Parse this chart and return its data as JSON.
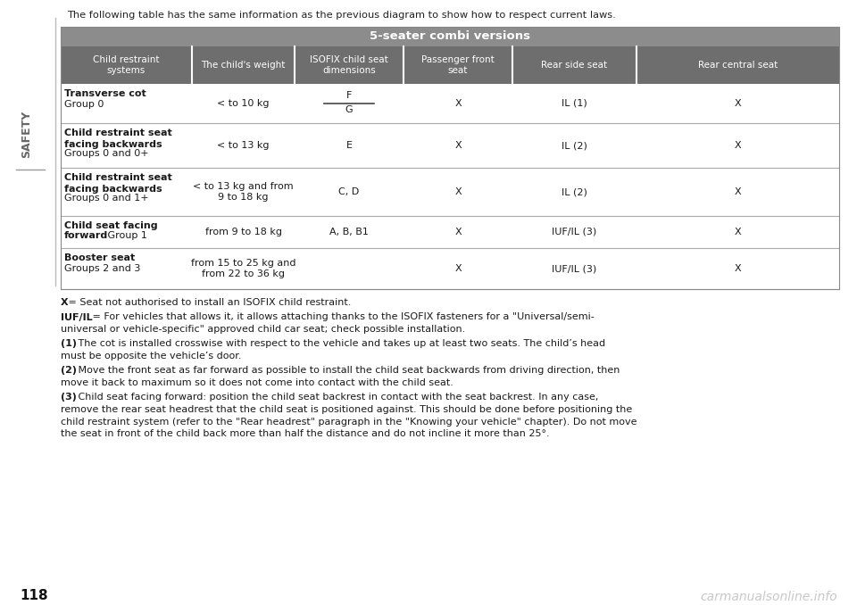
{
  "title_text": "The following table has the same information as the previous diagram to show how to respect current laws.",
  "section_label": "SAFETY",
  "page_number": "118",
  "watermark": "carmanualsonline.info",
  "table_title": "5-seater combi versions",
  "col_headers": [
    "Child restraint\nsystems",
    "The child's weight",
    "ISOFIX child seat\ndimensions",
    "Passenger front\nseat",
    "Rear side seat",
    "Rear central seat"
  ],
  "table_title_bg": "#8c8c8c",
  "header_bg": "#6e6e6e",
  "rows": [
    {
      "col0_bold": "Transverse cot",
      "col0_normal": "Group 0",
      "col1": "< to 10 kg",
      "col2_special": true,
      "col2_top": "F",
      "col2_bottom": "G",
      "col3": "X",
      "col4": "IL (1)",
      "col5": "X"
    },
    {
      "col0_bold": "Child restraint seat\nfacing backwards",
      "col0_normal": "Groups 0 and 0+",
      "col1": "< to 13 kg",
      "col2": "E",
      "col3": "X",
      "col4": "IL (2)",
      "col5": "X"
    },
    {
      "col0_bold": "Child restraint seat\nfacing backwards",
      "col0_normal": "Groups 0 and 1+",
      "col1": "< to 13 kg and from\n9 to 18 kg",
      "col2": "C, D",
      "col3": "X",
      "col4": "IL (2)",
      "col5": "X"
    },
    {
      "col0_bold": "Child seat facing\nforward",
      "col0_bold_inline": " Group 1",
      "col0_normal": "",
      "col1": "from 9 to 18 kg",
      "col2": "A, B, B1",
      "col3": "X",
      "col4": "IUF/IL (3)",
      "col5": "X"
    },
    {
      "col0_bold": "Booster seat",
      "col0_normal": "Groups 2 and 3",
      "col1": "from 15 to 25 kg and\nfrom 22 to 36 kg",
      "col2": "",
      "col3": "X",
      "col4": "IUF/IL (3)",
      "col5": "X"
    }
  ],
  "footnotes": [
    {
      "bold": "X",
      "normal": " = Seat not authorised to install an ISOFIX child restraint."
    },
    {
      "bold": "IUF/IL",
      "normal": " = For vehicles that allows it, it allows attaching thanks to the ISOFIX fasteners for a \"Universal/semi-universal or vehicle-specific\" approved child car seat; check possible installation."
    },
    {
      "bold": "(1)",
      "normal": " The cot is installed crosswise with respect to the vehicle and takes up at least two seats. The child’s head must be opposite the vehicle’s door."
    },
    {
      "bold": "(2)",
      "normal": " Move the front seat as far forward as possible to install the child seat backwards from driving direction, then move it back to maximum so it does not come into contact with the child seat."
    },
    {
      "bold": "(3)",
      "normal": " Child seat facing forward: position the child seat backrest in contact with the seat backrest. In any case, remove the rear seat headrest that the child seat is positioned against. This should be done before positioning the child restraint system (refer to the \"Rear headrest\" paragraph in the \"Knowing your vehicle\" chapter). Do not move the seat in front of the child back more than half the distance and do not incline it more than 25°."
    }
  ],
  "bg_color": "#ffffff"
}
